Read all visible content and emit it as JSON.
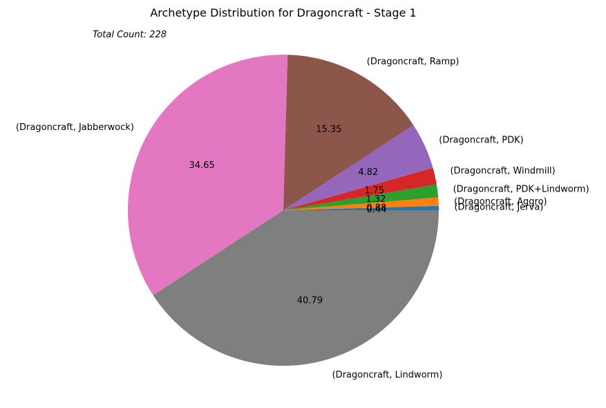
{
  "chart_data": {
    "type": "pie",
    "title": "Archetype Distribution for Dragoncraft - Stage 1",
    "annotation": "Total Count: 228",
    "slices": [
      {
        "label": "(Dragoncraft, Jerva)",
        "value": 0.44,
        "pct_label": "0.44",
        "color": "#1f77b4"
      },
      {
        "label": "(Dragoncraft, Aggro)",
        "value": 0.88,
        "pct_label": "0.88",
        "color": "#ff7f0e"
      },
      {
        "label": "(Dragoncraft, PDK+Lindworm)",
        "value": 1.32,
        "pct_label": "1.32",
        "color": "#2ca02c"
      },
      {
        "label": "(Dragoncraft, Windmill)",
        "value": 1.75,
        "pct_label": "1.75",
        "color": "#d62728"
      },
      {
        "label": "(Dragoncraft, PDK)",
        "value": 4.82,
        "pct_label": "4.82",
        "color": "#9467bd"
      },
      {
        "label": "(Dragoncraft, Ramp)",
        "value": 15.35,
        "pct_label": "15.35",
        "color": "#8c564b"
      },
      {
        "label": "(Dragoncraft, Jabberwock)",
        "value": 34.65,
        "pct_label": "34.65",
        "color": "#e377c2"
      },
      {
        "label": "(Dragoncraft, Lindworm)",
        "value": 40.79,
        "pct_label": "40.79",
        "color": "#7f7f7f"
      }
    ]
  }
}
